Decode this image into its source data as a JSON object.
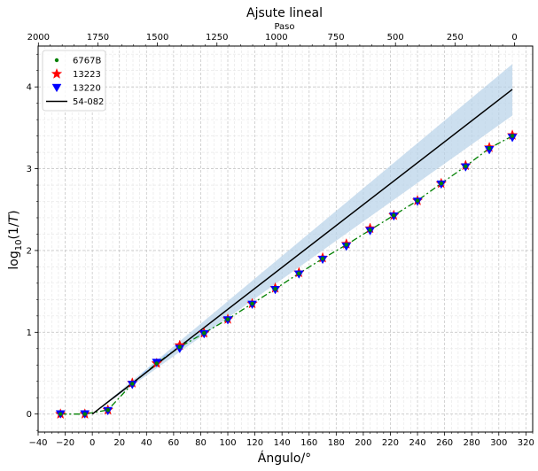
{
  "chart_data": {
    "type": "line",
    "title": "Ajsute lineal",
    "xlabel": "Ángulo/°",
    "ylabel_html": "log10(1/T)",
    "top_xlabel": "Paso",
    "xlim": [
      -40,
      325
    ],
    "ylim": [
      -0.22,
      4.5
    ],
    "grid": true,
    "legend_position": "top-left",
    "x_ticks": [
      -40,
      -20,
      0,
      20,
      40,
      60,
      80,
      100,
      120,
      140,
      160,
      180,
      200,
      220,
      240,
      260,
      280,
      300,
      320
    ],
    "x_tick_labels": [
      "−40",
      "−20",
      "0",
      "20",
      "40",
      "60",
      "80",
      "100",
      "120",
      "140",
      "160",
      "180",
      "200",
      "220",
      "240",
      "260",
      "280",
      "300",
      "320"
    ],
    "y_ticks": [
      0,
      1,
      2,
      3,
      4
    ],
    "y_tick_labels": [
      "0",
      "1",
      "2",
      "3",
      "4"
    ],
    "top_ticks": [
      2000,
      1750,
      1500,
      1250,
      1000,
      750,
      500,
      250,
      0
    ],
    "top_tick_labels": [
      "2000",
      "1750",
      "1500",
      "1250",
      "1000",
      "750",
      "500",
      "250",
      "0"
    ],
    "top_axis_map": {
      "x_at_step0": 311.6,
      "degrees_per_step": -0.1757
    },
    "series": [
      {
        "name": "6767B",
        "marker": "dot",
        "color": "#008000",
        "x": [
          -23.5,
          -5.5,
          11.5,
          29.5,
          47.5,
          64.5,
          82.5,
          100,
          118,
          135,
          152.5,
          170,
          187.5,
          205,
          222.5,
          240,
          257.5,
          275.5,
          293,
          310
        ],
        "y": [
          0.0,
          0.0,
          0.05,
          0.37,
          0.62,
          0.82,
          0.99,
          1.16,
          1.35,
          1.53,
          1.72,
          1.9,
          2.07,
          2.25,
          2.43,
          2.61,
          2.82,
          3.03,
          3.25,
          3.4
        ]
      },
      {
        "name": "13223",
        "marker": "star",
        "color": "#ff0000",
        "x": [
          -23.5,
          -5.5,
          11.5,
          29.5,
          47.5,
          64.5,
          82.5,
          100,
          118,
          135,
          152.5,
          170,
          187.5,
          205,
          222.5,
          240,
          257.5,
          275.5,
          293,
          310
        ],
        "y": [
          0.0,
          0.0,
          0.05,
          0.38,
          0.62,
          0.84,
          0.99,
          1.16,
          1.35,
          1.54,
          1.73,
          1.91,
          2.08,
          2.27,
          2.43,
          2.61,
          2.82,
          3.04,
          3.26,
          3.41
        ]
      },
      {
        "name": "13220",
        "marker": "triangle-down",
        "color": "#0000ff",
        "x": [
          -23.5,
          -5.5,
          11.5,
          29.5,
          47.5,
          64.5,
          82.5,
          100,
          118,
          135,
          152.5,
          170,
          187.5,
          205,
          222.5,
          240,
          257.5,
          275.5,
          293,
          310
        ],
        "y": [
          0.0,
          0.0,
          0.04,
          0.36,
          0.63,
          0.8,
          0.98,
          1.15,
          1.34,
          1.52,
          1.71,
          1.89,
          2.05,
          2.24,
          2.42,
          2.6,
          2.81,
          3.02,
          3.23,
          3.38
        ]
      },
      {
        "name": "54-082",
        "marker": "line",
        "color": "#000000",
        "x": [
          0,
          310
        ],
        "y": [
          0.0,
          3.97
        ]
      }
    ],
    "confidence_band": {
      "color": "#b7d2e8",
      "x": [
        0,
        310
      ],
      "upper": [
        0.0,
        4.28
      ],
      "lower": [
        0.0,
        3.65
      ]
    },
    "fit_lines": [
      {
        "style": "dashdot",
        "color": "#008000",
        "x": [
          -23.5,
          -5.5,
          11.5,
          29.5,
          47.5,
          64.5,
          82.5,
          100,
          118,
          135,
          152.5,
          170,
          187.5,
          205,
          222.5,
          240,
          257.5,
          275.5,
          293,
          310
        ],
        "y": [
          0.0,
          0.0,
          0.05,
          0.37,
          0.62,
          0.82,
          0.99,
          1.16,
          1.35,
          1.53,
          1.72,
          1.9,
          2.07,
          2.25,
          2.43,
          2.61,
          2.82,
          3.03,
          3.25,
          3.4
        ]
      },
      {
        "style": "dashdot",
        "color": "#a0c8ff",
        "x": [
          29.5,
          47.5,
          64.5,
          82.5
        ],
        "y": [
          0.38,
          0.64,
          0.84,
          1.0
        ]
      }
    ]
  }
}
